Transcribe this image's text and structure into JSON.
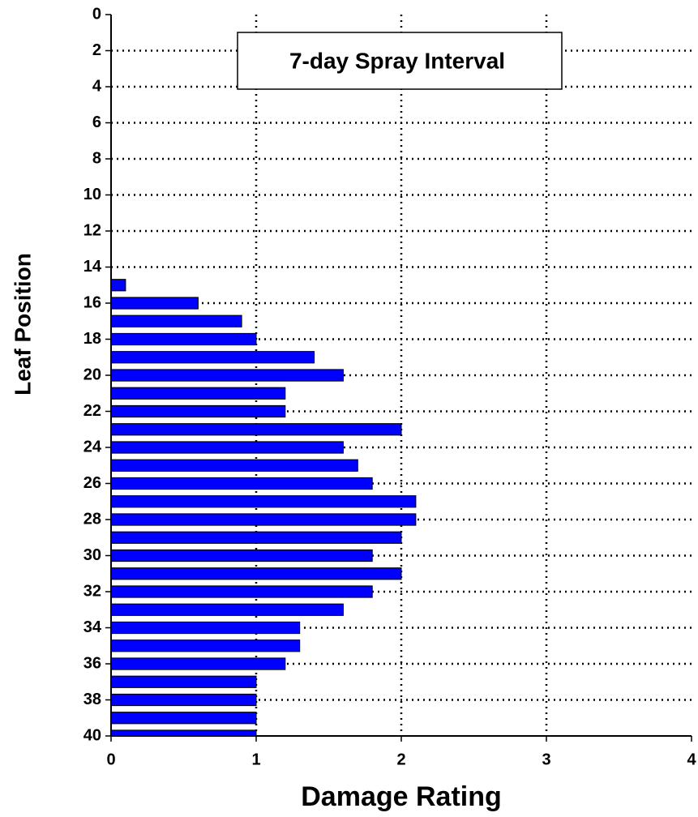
{
  "chart_data": {
    "type": "hbar",
    "annotation": "7-day Spray Interval",
    "xlabel": "Damage Rating",
    "ylabel": "Leaf Position",
    "y": [
      15,
      16,
      17,
      18,
      19,
      20,
      21,
      22,
      23,
      24,
      25,
      26,
      27,
      28,
      29,
      30,
      31,
      32,
      33,
      34,
      35,
      36,
      37,
      38,
      39,
      40
    ],
    "values": [
      0.1,
      0.6,
      0.9,
      1.0,
      1.4,
      1.6,
      1.2,
      1.2,
      2.0,
      1.6,
      1.7,
      1.8,
      2.1,
      2.1,
      2.0,
      1.8,
      2.0,
      1.8,
      1.6,
      1.3,
      1.3,
      1.2,
      1.0,
      1.0,
      1.0,
      1.0
    ],
    "color": "#0000ff",
    "xlim": [
      0,
      4
    ],
    "xticks": [
      0,
      1,
      2,
      3,
      4
    ],
    "ylim": [
      0,
      40
    ],
    "yticks": [
      0,
      2,
      4,
      6,
      8,
      10,
      12,
      14,
      16,
      18,
      20,
      22,
      24,
      26,
      28,
      30,
      32,
      34,
      36,
      38,
      40
    ],
    "y_inverted": true,
    "grid": true
  }
}
